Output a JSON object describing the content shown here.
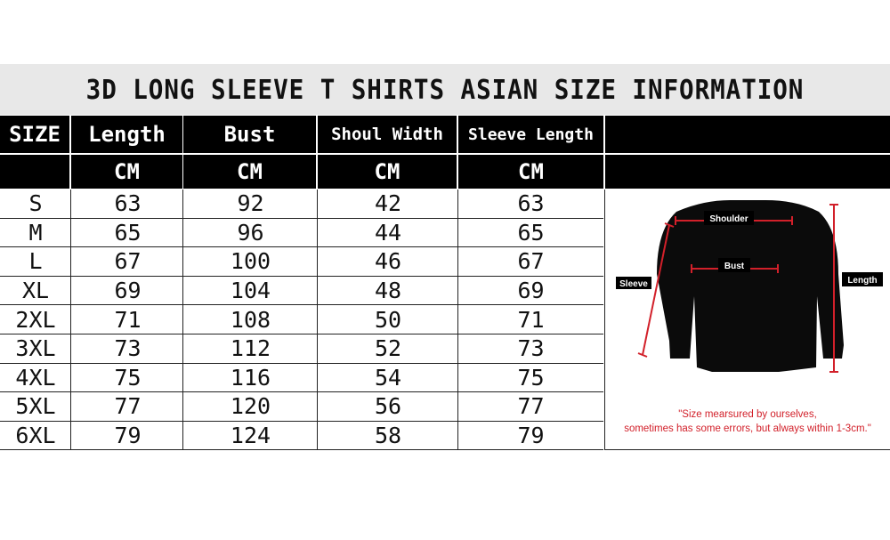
{
  "title": "3D LONG SLEEVE T SHIRTS ASIAN SIZE INFORMATION",
  "headers": [
    "SIZE",
    "Length",
    "Bust",
    "Shoul Width",
    "Sleeve Length"
  ],
  "units": [
    "",
    "CM",
    "CM",
    "CM",
    "CM"
  ],
  "rows": [
    [
      "S",
      "63",
      "92",
      "42",
      "63"
    ],
    [
      "M",
      "65",
      "96",
      "44",
      "65"
    ],
    [
      "L",
      "67",
      "100",
      "46",
      "67"
    ],
    [
      "XL",
      "69",
      "104",
      "48",
      "69"
    ],
    [
      "2XL",
      "71",
      "108",
      "50",
      "71"
    ],
    [
      "3XL",
      "73",
      "112",
      "52",
      "73"
    ],
    [
      "4XL",
      "75",
      "116",
      "54",
      "75"
    ],
    [
      "5XL",
      "77",
      "120",
      "56",
      "77"
    ],
    [
      "6XL",
      "79",
      "124",
      "58",
      "79"
    ]
  ],
  "diagram": {
    "labels": {
      "shoulder": "Shoulder",
      "bust": "Bust",
      "sleeve": "Sleeve",
      "length": "Length"
    },
    "note_line1": "\"Size mearsured by ourselves,",
    "note_line2": "sometimes has some errors, but always within 1-3cm.\"",
    "measure_color": "#d2202a"
  }
}
